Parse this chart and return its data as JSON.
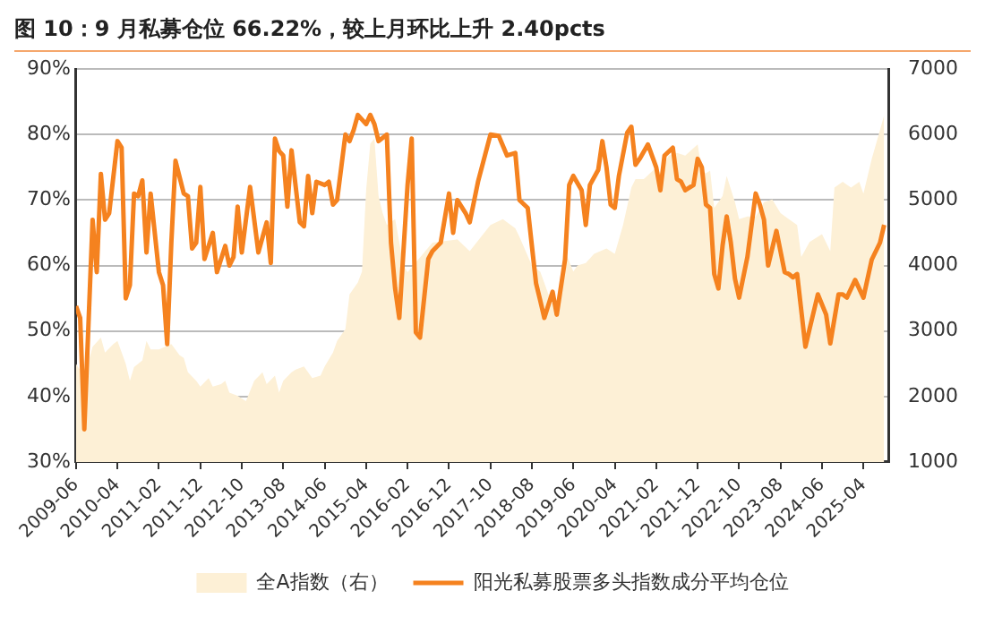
{
  "chart_data": {
    "type": "line",
    "title": "图 10：9 月私募仓位 66.22%，较上月环比上升 2.40pcts",
    "xlim": [
      "2009-06",
      "2025-10"
    ],
    "xticks": [
      "2009-06",
      "2010-04",
      "2011-02",
      "2011-12",
      "2012-10",
      "2013-08",
      "2014-06",
      "2015-04",
      "2016-02",
      "2016-12",
      "2017-10",
      "2018-08",
      "2019-06",
      "2020-04",
      "2021-02",
      "2021-12",
      "2022-10",
      "2023-08",
      "2024-06",
      "2025-04"
    ],
    "ylim": [
      30,
      90
    ],
    "yticks": [
      {
        "value": 30,
        "label": "30%"
      },
      {
        "value": 40,
        "label": "40%"
      },
      {
        "value": 50,
        "label": "50%"
      },
      {
        "value": 60,
        "label": "60%"
      },
      {
        "value": 70,
        "label": "70%"
      },
      {
        "value": 80,
        "label": "80%"
      },
      {
        "value": 90,
        "label": "90%"
      }
    ],
    "y2lim": [
      1000,
      7000
    ],
    "y2ticks": [
      1000,
      2000,
      3000,
      4000,
      5000,
      6000,
      7000
    ],
    "grid": "y",
    "legend": "bottom",
    "series": [
      {
        "name": "全A指数（右）",
        "type": "area",
        "axis": "y2",
        "color": "#fdf0d6",
        "x": [
          "2009-06",
          "2009-08",
          "2009-10",
          "2009-12",
          "2010-01",
          "2010-03",
          "2010-04",
          "2010-06",
          "2010-07",
          "2010-08",
          "2010-10",
          "2010-11",
          "2010-12",
          "2011-02",
          "2011-05",
          "2011-07",
          "2011-08",
          "2011-09",
          "2011-11",
          "2011-12",
          "2012-02",
          "2012-03",
          "2012-05",
          "2012-06",
          "2012-07",
          "2012-09",
          "2012-11",
          "2013-01",
          "2013-03",
          "2013-04",
          "2013-06",
          "2013-07",
          "2013-08",
          "2013-10",
          "2013-11",
          "2014-01",
          "2014-03",
          "2014-05",
          "2014-06",
          "2014-08",
          "2014-09",
          "2014-11",
          "2014-12",
          "2015-02",
          "2015-03",
          "2015-04",
          "2015-05",
          "2015-06",
          "2015-07",
          "2015-08",
          "2015-09",
          "2015-11",
          "2016-01",
          "2016-02",
          "2016-08",
          "2017-02",
          "2017-05",
          "2017-10",
          "2018-01",
          "2018-04",
          "2018-05",
          "2018-08",
          "2018-10",
          "2018-12",
          "2019-02",
          "2019-04",
          "2019-06",
          "2019-07",
          "2019-09",
          "2019-11",
          "2020-02",
          "2020-04",
          "2020-06",
          "2020-08",
          "2020-09",
          "2020-11",
          "2021-02",
          "2021-03",
          "2021-05",
          "2021-07",
          "2021-09",
          "2021-12",
          "2022-01",
          "2022-02",
          "2022-03",
          "2022-04",
          "2022-06",
          "2022-07",
          "2022-09",
          "2022-10",
          "2022-12",
          "2023-02",
          "2023-04",
          "2023-06",
          "2023-08",
          "2023-10",
          "2023-12",
          "2024-01",
          "2024-03",
          "2024-06",
          "2024-08",
          "2024-09",
          "2024-11",
          "2025-01",
          "2025-03",
          "2025-04",
          "2025-06",
          "2025-08",
          "2025-09"
        ],
        "values": [
          2500,
          2300,
          2760,
          2900,
          2670,
          2800,
          2850,
          2500,
          2240,
          2450,
          2550,
          2850,
          2720,
          2720,
          2800,
          2630,
          2590,
          2370,
          2240,
          2150,
          2280,
          2150,
          2190,
          2240,
          2060,
          2010,
          1930,
          2240,
          2370,
          2190,
          2320,
          2060,
          2240,
          2370,
          2410,
          2460,
          2280,
          2320,
          2460,
          2670,
          2850,
          3030,
          3560,
          3740,
          3910,
          5150,
          5860,
          5940,
          5060,
          4800,
          4620,
          4710,
          4000,
          3900,
          4350,
          4400,
          4220,
          4620,
          4710,
          4570,
          4440,
          4000,
          3910,
          3560,
          3380,
          4220,
          3910,
          4000,
          4040,
          4180,
          4260,
          4180,
          4620,
          5190,
          5320,
          5320,
          5500,
          5410,
          5680,
          5720,
          5680,
          5850,
          5450,
          5410,
          5450,
          4880,
          5060,
          5370,
          4970,
          4710,
          4750,
          4750,
          4970,
          5010,
          4800,
          4710,
          4620,
          4130,
          4360,
          4480,
          4220,
          5190,
          5280,
          5190,
          5280,
          5100,
          5630,
          6070,
          6300
        ]
      },
      {
        "name": "阳光私募股票多头指数成分平均仓位",
        "type": "line",
        "color": "#f5821f",
        "x": [
          "2009-06",
          "2009-07",
          "2009-08",
          "2009-10",
          "2009-11",
          "2009-12",
          "2010-01",
          "2010-02",
          "2010-04",
          "2010-05",
          "2010-06",
          "2010-07",
          "2010-08",
          "2010-09",
          "2010-10",
          "2010-11",
          "2010-12",
          "2011-02",
          "2011-03",
          "2011-04",
          "2011-05",
          "2011-06",
          "2011-08",
          "2011-09",
          "2011-10",
          "2011-11",
          "2011-12",
          "2012-01",
          "2012-03",
          "2012-04",
          "2012-06",
          "2012-07",
          "2012-08",
          "2012-09",
          "2012-10",
          "2012-12",
          "2013-01",
          "2013-02",
          "2013-04",
          "2013-05",
          "2013-06",
          "2013-07",
          "2013-08",
          "2013-09",
          "2013-10",
          "2013-12",
          "2014-01",
          "2014-02",
          "2014-03",
          "2014-04",
          "2014-06",
          "2014-07",
          "2014-08",
          "2014-09",
          "2014-11",
          "2014-12",
          "2015-01",
          "2015-02",
          "2015-04",
          "2015-05",
          "2015-06",
          "2015-07",
          "2015-09",
          "2015-10",
          "2015-11",
          "2015-12",
          "2016-02",
          "2016-03",
          "2016-04",
          "2016-05",
          "2016-07",
          "2016-08",
          "2016-10",
          "2016-12",
          "2017-01",
          "2017-02",
          "2017-04",
          "2017-05",
          "2017-07",
          "2017-10",
          "2017-12",
          "2018-02",
          "2018-04",
          "2018-05",
          "2018-07",
          "2018-08",
          "2018-09",
          "2018-10",
          "2018-11",
          "2019-01",
          "2019-02",
          "2019-04",
          "2019-05",
          "2019-06",
          "2019-08",
          "2019-09",
          "2019-10",
          "2019-12",
          "2020-01",
          "2020-02",
          "2020-03",
          "2020-04",
          "2020-05",
          "2020-07",
          "2020-08",
          "2020-09",
          "2020-10",
          "2020-12",
          "2021-02",
          "2021-03",
          "2021-04",
          "2021-06",
          "2021-07",
          "2021-08",
          "2021-09",
          "2021-11",
          "2021-12",
          "2022-01",
          "2022-02",
          "2022-03",
          "2022-04",
          "2022-05",
          "2022-06",
          "2022-07",
          "2022-08",
          "2022-09",
          "2022-10",
          "2022-12",
          "2023-02",
          "2023-03",
          "2023-04",
          "2023-05",
          "2023-07",
          "2023-09",
          "2023-10",
          "2023-11",
          "2023-12",
          "2024-02",
          "2024-03",
          "2024-05",
          "2024-07",
          "2024-08",
          "2024-10",
          "2024-11",
          "2024-12",
          "2025-02",
          "2025-04",
          "2025-06",
          "2025-08",
          "2025-09"
        ],
        "values": [
          53.8,
          52,
          35,
          67,
          59,
          74,
          67,
          68,
          79,
          78,
          55,
          57,
          71,
          70.6,
          73,
          62,
          71,
          59,
          57,
          48,
          63.5,
          76,
          71,
          70.6,
          62.6,
          63.5,
          72,
          61,
          65,
          59,
          63,
          60,
          61.3,
          69,
          62,
          72,
          67,
          62,
          66.6,
          60.4,
          79.4,
          77.5,
          76.8,
          69,
          77.6,
          66.6,
          66,
          73.7,
          68,
          72.8,
          72.3,
          72.8,
          69.3,
          70,
          80,
          79,
          80.7,
          83,
          81.6,
          83,
          81.6,
          79,
          80,
          63.5,
          56.5,
          52,
          72.3,
          79.4,
          49.8,
          49,
          61,
          62.2,
          63.5,
          71,
          65,
          70,
          68,
          66.6,
          72.8,
          80,
          79.8,
          76.8,
          77.2,
          70,
          68.8,
          63,
          57.3,
          54.7,
          52,
          56,
          52.5,
          60.9,
          72.3,
          73.7,
          71.5,
          66.2,
          72.3,
          74.6,
          79,
          75,
          69.3,
          68.8,
          73.7,
          80.3,
          81.2,
          75.4,
          76.3,
          78.5,
          75,
          71.5,
          76.8,
          78,
          73.2,
          72.8,
          71.5,
          72.3,
          76.3,
          75,
          69.3,
          68.8,
          58.7,
          56.5,
          63,
          67.5,
          63.5,
          58,
          55.1,
          61.3,
          71,
          69.3,
          67,
          60,
          65.3,
          59,
          58.7,
          58.2,
          58.7,
          47.6,
          50.3,
          55.6,
          52.5,
          48.1,
          55.6,
          55.6,
          55.1,
          57.8,
          55.1,
          60.9,
          63.5,
          66.22
        ]
      }
    ]
  }
}
